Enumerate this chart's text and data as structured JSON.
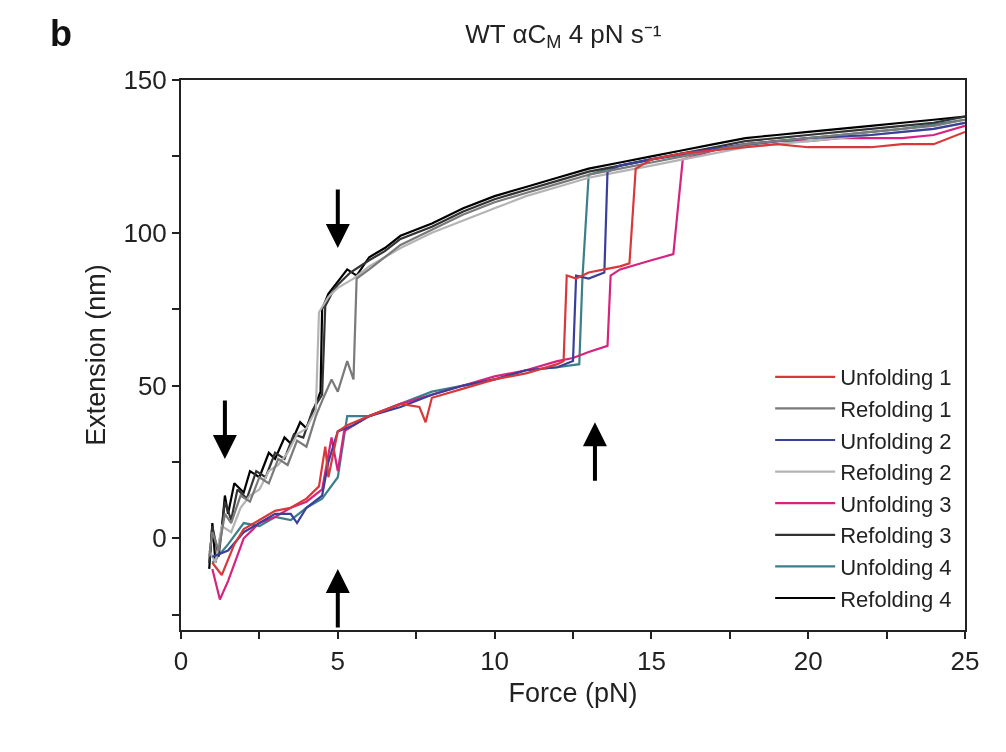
{
  "chart_data": {
    "type": "line",
    "title": "WT αC$_{M}$ 4 pN s⁻¹",
    "xlabel": "Force (pN)",
    "ylabel": "Extension (nm)",
    "annotations": [
      "b"
    ],
    "xlim": [
      0,
      25
    ],
    "xticks": [
      0,
      {
        "value": 2.5,
        "label": null
      },
      5,
      {
        "value": 7.5,
        "label": null
      },
      10,
      {
        "value": 12.5,
        "label": null
      },
      15,
      {
        "value": 17.5,
        "label": null
      },
      20,
      {
        "value": 22.5,
        "label": null
      },
      25
    ],
    "ylim": [
      -30,
      150
    ],
    "yticks": [
      {
        "value": -25,
        "label": null
      },
      0,
      {
        "value": 25,
        "label": null
      },
      50,
      {
        "value": 75,
        "label": null
      },
      100,
      {
        "value": 125,
        "label": null
      },
      150
    ],
    "legend": "bottom right",
    "marker": "none",
    "line_style": "solid",
    "series": [
      {
        "name": "Unfolding 1",
        "color": "#d9383a",
        "x": [
          1.0,
          1.3,
          1.7,
          2.0,
          2.5,
          3.0,
          3.5,
          4.0,
          4.4,
          4.6,
          4.7,
          5.0,
          5.3,
          6,
          7,
          7.6,
          7.8,
          8,
          9,
          10,
          11,
          12,
          12.2,
          12.3,
          12.6,
          13,
          13.5,
          14,
          14.3,
          14.5,
          15,
          16,
          17,
          18,
          19,
          20,
          21,
          22,
          23,
          24,
          25
        ],
        "values": [
          -8,
          -12,
          -2,
          3,
          6,
          9,
          10,
          13,
          17,
          30,
          20,
          35,
          37,
          40,
          44,
          43,
          38,
          46,
          49,
          52,
          54,
          57,
          58,
          86,
          85,
          87,
          88,
          89,
          90,
          121,
          124,
          126,
          127,
          128,
          129,
          128,
          128,
          128,
          129,
          129,
          133
        ]
      },
      {
        "name": "Refolding 1",
        "color": "#7a7a7a",
        "x": [
          0.9,
          1.0,
          1.2,
          1.4,
          1.6,
          1.9,
          2.2,
          2.5,
          2.8,
          3.1,
          3.4,
          3.7,
          4.0,
          4.3,
          4.5,
          4.8,
          5.0,
          5.3,
          5.5,
          5.6,
          6,
          6.5,
          7,
          8,
          9,
          10,
          11,
          12,
          13,
          14,
          15,
          16,
          17,
          18,
          19,
          20,
          21,
          22,
          23,
          24,
          25
        ],
        "values": [
          -6,
          2,
          -4,
          8,
          5,
          14,
          12,
          20,
          18,
          26,
          24,
          32,
          30,
          40,
          45,
          52,
          48,
          58,
          52,
          85,
          88,
          92,
          96,
          101,
          106,
          110,
          113,
          116,
          119,
          121,
          123,
          125,
          127,
          129,
          130,
          131,
          132,
          133,
          134,
          135,
          137
        ]
      },
      {
        "name": "Unfolding 2",
        "color": "#3a3f9a",
        "x": [
          1.0,
          1.5,
          2,
          2.5,
          3,
          3.5,
          3.7,
          4,
          4.5,
          4.7,
          5.0,
          5.5,
          6,
          7,
          8,
          9,
          10,
          11,
          12,
          12.5,
          12.6,
          13,
          13.5,
          13.6,
          14,
          15,
          16,
          18,
          20,
          22,
          24,
          25
        ],
        "values": [
          -6,
          -4,
          2,
          5,
          8,
          8,
          5,
          10,
          14,
          25,
          35,
          37,
          40,
          43,
          47,
          50,
          52,
          55,
          56,
          58,
          86,
          85,
          87,
          120,
          122,
          124,
          126,
          129,
          131,
          132,
          134,
          136
        ]
      },
      {
        "name": "Refolding 2",
        "color": "#b4b4b4",
        "x": [
          0.9,
          1.1,
          1.3,
          1.6,
          1.9,
          2.2,
          2.5,
          2.8,
          3.1,
          3.4,
          3.7,
          4.0,
          4.3,
          4.4,
          4.7,
          5.0,
          5.5,
          6,
          7,
          8,
          9,
          10,
          11,
          12,
          13,
          14,
          15,
          16,
          17,
          18,
          19,
          20,
          21,
          22,
          23,
          24,
          25
        ],
        "values": [
          -4,
          -8,
          4,
          2,
          10,
          14,
          16,
          22,
          24,
          28,
          34,
          36,
          42,
          74,
          79,
          82,
          85,
          89,
          95,
          100,
          104,
          108,
          112,
          115,
          118,
          120,
          122,
          124,
          126,
          128,
          129,
          130,
          131,
          132,
          133,
          134,
          136
        ]
      },
      {
        "name": "Unfolding 3",
        "color": "#d6237f",
        "x": [
          1.0,
          1.24,
          1.5,
          2,
          2.5,
          3,
          3.5,
          4,
          4.5,
          4.8,
          5.0,
          5.2,
          5.5,
          6,
          7,
          8,
          9,
          10,
          11,
          12,
          12.5,
          13,
          13.6,
          13.7,
          14,
          15,
          15.7,
          16,
          17,
          18,
          19,
          20,
          21,
          22,
          23,
          24,
          25
        ],
        "values": [
          -10,
          -20,
          -14,
          0,
          5,
          7,
          10,
          12,
          16,
          33,
          22,
          35,
          37,
          40,
          44,
          47,
          50,
          53,
          55,
          58,
          59,
          61,
          63,
          86,
          88,
          91,
          93,
          124,
          127,
          129,
          130,
          130,
          131,
          131,
          131,
          132,
          135
        ]
      },
      {
        "name": "Refolding 3",
        "color": "#333333",
        "x": [
          0.9,
          1.0,
          1.2,
          1.4,
          1.6,
          1.8,
          2.1,
          2.4,
          2.7,
          3.0,
          3.3,
          3.6,
          3.9,
          4.2,
          4.5,
          4.6,
          4.8,
          5.0,
          5.4,
          6,
          6.5,
          7,
          8,
          9,
          10,
          11,
          12,
          13,
          14,
          15,
          16,
          17,
          18,
          19,
          20,
          21,
          22,
          23,
          24,
          25
        ],
        "values": [
          -8,
          4,
          -6,
          12,
          6,
          16,
          13,
          22,
          20,
          28,
          26,
          34,
          33,
          42,
          47,
          76,
          80,
          83,
          87,
          91,
          94,
          98,
          102,
          107,
          111,
          114,
          117,
          120,
          122,
          124,
          126,
          128,
          130,
          131,
          132,
          133,
          134,
          135,
          136,
          138
        ]
      },
      {
        "name": "Unfolding 4",
        "color": "#3a7f8a",
        "x": [
          1.0,
          1.5,
          2,
          2.5,
          3,
          3.5,
          4,
          4.5,
          5.0,
          5.3,
          6,
          7,
          8,
          9,
          10,
          11,
          12,
          12.7,
          12.8,
          13.0,
          14,
          15,
          17,
          19,
          21,
          23,
          25
        ],
        "values": [
          -8,
          -2,
          5,
          4,
          7,
          6,
          10,
          13,
          20,
          40,
          40,
          44,
          48,
          50,
          52,
          55,
          56,
          57,
          85,
          119,
          122,
          124,
          127,
          130,
          132,
          134,
          137
        ]
      },
      {
        "name": "Refolding 4",
        "color": "#000000",
        "x": [
          0.9,
          1.0,
          1.1,
          1.3,
          1.4,
          1.5,
          1.7,
          2.0,
          2.2,
          2.5,
          2.8,
          3.0,
          3.3,
          3.5,
          3.8,
          4.0,
          4.3,
          4.45,
          4.5,
          4.7,
          5.0,
          5.3,
          5.6,
          6,
          6.5,
          7,
          8,
          9,
          10,
          11,
          12,
          13,
          14,
          15,
          16,
          17,
          18,
          19,
          20,
          21,
          22,
          23,
          24,
          25
        ],
        "values": [
          -10,
          5,
          -8,
          3,
          14,
          8,
          18,
          15,
          22,
          20,
          28,
          26,
          33,
          31,
          38,
          36,
          44,
          48,
          75,
          80,
          84,
          88,
          86,
          92,
          95,
          99,
          103,
          108,
          112,
          115,
          118,
          121,
          123,
          125,
          127,
          129,
          131,
          132,
          133,
          134,
          135,
          136,
          137,
          138
        ]
      }
    ]
  }
}
